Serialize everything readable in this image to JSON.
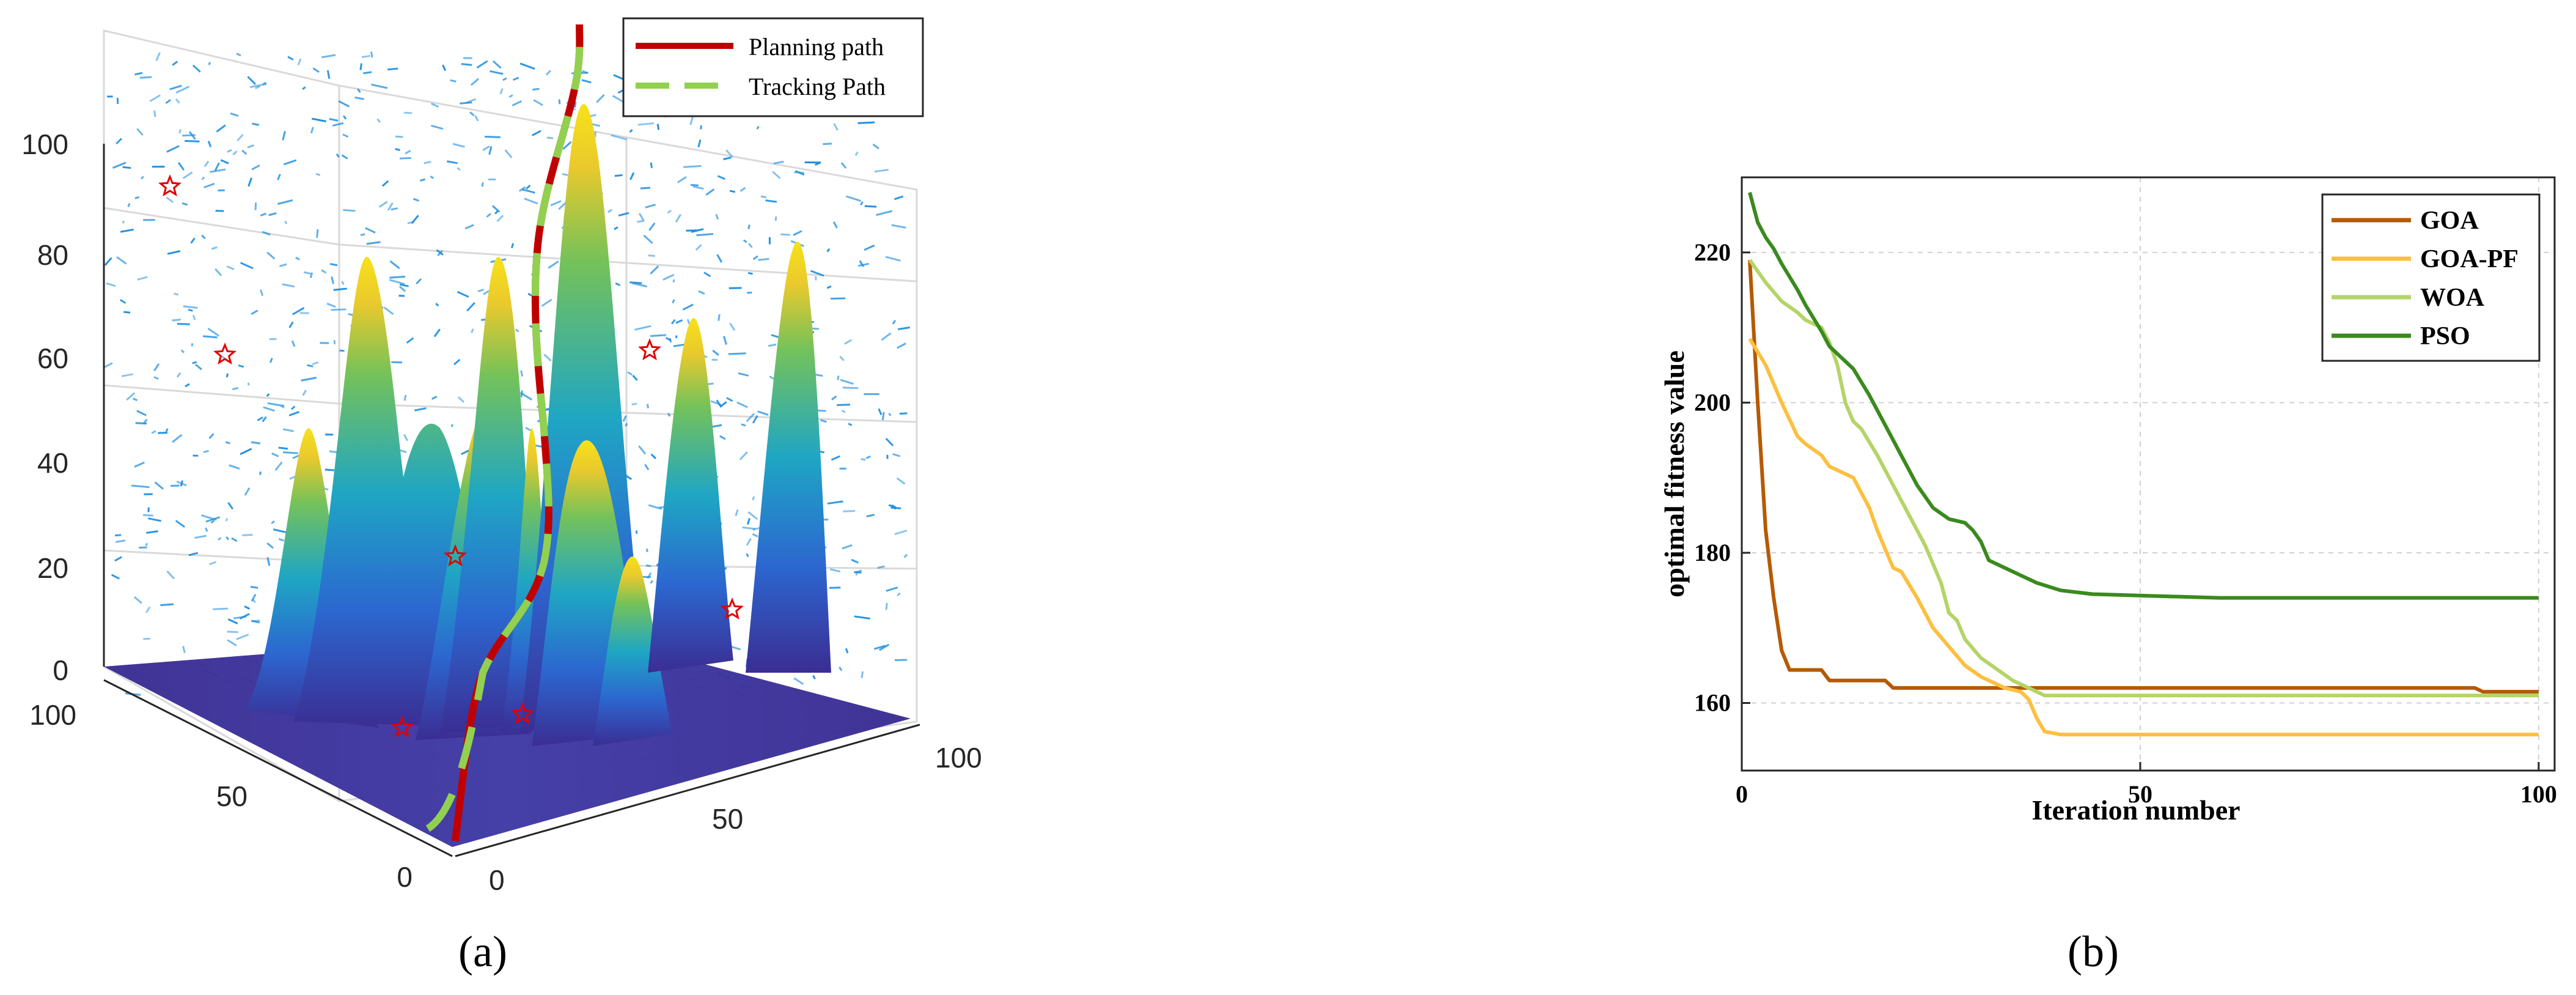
{
  "panel_labels": {
    "a": "(a)",
    "b": "(b)"
  },
  "chart_data": [
    {
      "type": "3d-surface",
      "panel": "(a)",
      "z_ticks": [
        "0",
        "20",
        "40",
        "60",
        "80",
        "100"
      ],
      "x_ticks": [
        "0",
        "50",
        "100"
      ],
      "y_ticks": [
        "0",
        "50",
        "100"
      ],
      "zlim": [
        0,
        100
      ],
      "xlim": [
        0,
        100
      ],
      "ylim": [
        0,
        100
      ],
      "legend": {
        "position": "top-right",
        "entries": [
          {
            "name": "Planning path",
            "color": "#c00000",
            "style": "solid"
          },
          {
            "name": "Tracking Path",
            "color": "#92d050",
            "style": "dashed"
          }
        ]
      },
      "colors": {
        "surface_low": "#3b2d93",
        "surface_mid": "#1fa0c8",
        "surface_high": "#f5e11a",
        "vectors": "#1f8fe0",
        "targets": "#e00000"
      }
    },
    {
      "type": "line",
      "panel": "(b)",
      "xlabel": "Iteration number",
      "ylabel": "optimal fitness value",
      "xlim": [
        0,
        102
      ],
      "ylim": [
        151,
        230
      ],
      "x_ticks": [
        0,
        50,
        100
      ],
      "y_ticks": [
        160,
        180,
        200,
        220
      ],
      "grid": true,
      "legend": "top-right",
      "series": [
        {
          "name": "GOA",
          "color": "#b55a00",
          "points": [
            [
              1,
              219
            ],
            [
              2,
              200
            ],
            [
              3,
              183
            ],
            [
              4,
              174
            ],
            [
              5,
              167
            ],
            [
              6,
              164.4
            ],
            [
              10,
              164.4
            ],
            [
              11,
              163
            ],
            [
              18,
              163
            ],
            [
              19,
              162
            ],
            [
              92,
              162
            ],
            [
              93,
              161.5
            ],
            [
              100,
              161.5
            ]
          ]
        },
        {
          "name": "GOA-PF",
          "color": "#fdbf3f",
          "points": [
            [
              1,
              208.5
            ],
            [
              3,
              205
            ],
            [
              5,
              200
            ],
            [
              7,
              195.5
            ],
            [
              8,
              194.5
            ],
            [
              10,
              193
            ],
            [
              11,
              191.5
            ],
            [
              14,
              190
            ],
            [
              15,
              188
            ],
            [
              16,
              186
            ],
            [
              17,
              183
            ],
            [
              19,
              178
            ],
            [
              20,
              177.5
            ],
            [
              22,
              174
            ],
            [
              24,
              170
            ],
            [
              26,
              167.5
            ],
            [
              28,
              165
            ],
            [
              30,
              163.5
            ],
            [
              33,
              162
            ],
            [
              35,
              161.5
            ],
            [
              36,
              160.5
            ],
            [
              37,
              158
            ],
            [
              38,
              156.2
            ],
            [
              40,
              155.8
            ],
            [
              100,
              155.8
            ]
          ]
        },
        {
          "name": "WOA",
          "color": "#b4d468",
          "points": [
            [
              1,
              219
            ],
            [
              3,
              216
            ],
            [
              5,
              213.5
            ],
            [
              7,
              212
            ],
            [
              8,
              211
            ],
            [
              10,
              210
            ],
            [
              11,
              208
            ],
            [
              12,
              205
            ],
            [
              13,
              200
            ],
            [
              14,
              197.5
            ],
            [
              15,
              196.5
            ],
            [
              17,
              193
            ],
            [
              19,
              189
            ],
            [
              21,
              185
            ],
            [
              23,
              181
            ],
            [
              25,
              176
            ],
            [
              26,
              172
            ],
            [
              27,
              171
            ],
            [
              28,
              168.5
            ],
            [
              30,
              166
            ],
            [
              32,
              164.5
            ],
            [
              34,
              163
            ],
            [
              36,
              162
            ],
            [
              38,
              161
            ],
            [
              100,
              161
            ]
          ]
        },
        {
          "name": "PSO",
          "color": "#3a8a1e",
          "points": [
            [
              1,
              228
            ],
            [
              2,
              224
            ],
            [
              3,
              222
            ],
            [
              4,
              220.5
            ],
            [
              5,
              218.5
            ],
            [
              7,
              215
            ],
            [
              8,
              213
            ],
            [
              10,
              209.5
            ],
            [
              11,
              207.5
            ],
            [
              13,
              205.5
            ],
            [
              14,
              204.5
            ],
            [
              16,
              201
            ],
            [
              18,
              197
            ],
            [
              20,
              193
            ],
            [
              22,
              189
            ],
            [
              24,
              186
            ],
            [
              26,
              184.5
            ],
            [
              28,
              184
            ],
            [
              29,
              183
            ],
            [
              30,
              181.5
            ],
            [
              31,
              179
            ],
            [
              33,
              178
            ],
            [
              35,
              177
            ],
            [
              37,
              176
            ],
            [
              40,
              175
            ],
            [
              44,
              174.5
            ],
            [
              50,
              174.3
            ],
            [
              60,
              174
            ],
            [
              100,
              174
            ]
          ]
        }
      ]
    }
  ]
}
